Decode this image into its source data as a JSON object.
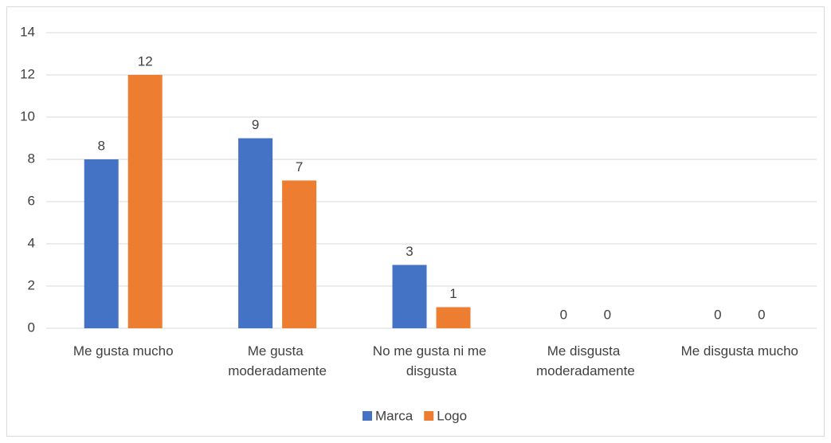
{
  "chart_data": {
    "type": "bar",
    "categories": [
      "Me gusta mucho",
      "Me gusta moderadamente",
      "No me gusta ni me disgusta",
      "Me disgusta moderadamente",
      "Me disgusta mucho"
    ],
    "series": [
      {
        "name": "Marca",
        "color": "#4472c4",
        "values": [
          8,
          9,
          3,
          0,
          0
        ]
      },
      {
        "name": "Logo",
        "color": "#ed7d31",
        "values": [
          12,
          7,
          1,
          0,
          0
        ]
      }
    ],
    "ylim": [
      0,
      14
    ],
    "yticks": [
      0,
      2,
      4,
      6,
      8,
      10,
      12,
      14
    ],
    "grid": true,
    "data_labels": true,
    "legend": "bottom"
  }
}
